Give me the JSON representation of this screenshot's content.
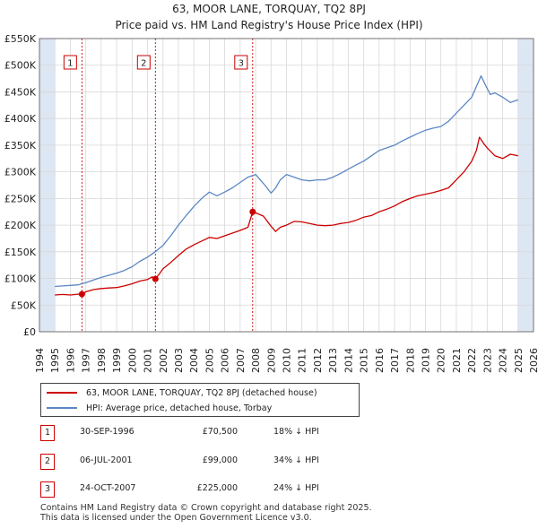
{
  "header": {
    "title": "63, MOOR LANE, TORQUAY, TQ2 8PJ",
    "subtitle": "Price paid vs. HM Land Registry's House Price Index (HPI)"
  },
  "colors": {
    "property": "#cc0000",
    "hpi": "#5b87c3",
    "shade": "#dde6f3",
    "grid": "#d8d8d8",
    "marker_line": "#cc0000"
  },
  "chart_data": {
    "type": "line",
    "title": "63, MOOR LANE, TORQUAY, TQ2 8PJ",
    "xlabel": "",
    "ylabel": "",
    "xlim": [
      1994,
      2026
    ],
    "ylim": [
      0,
      550000
    ],
    "x_ticks": [
      1994,
      1995,
      1996,
      1997,
      1998,
      1999,
      2000,
      2001,
      2002,
      2003,
      2004,
      2005,
      2006,
      2007,
      2008,
      2009,
      2010,
      2011,
      2012,
      2013,
      2014,
      2015,
      2016,
      2017,
      2018,
      2019,
      2020,
      2021,
      2022,
      2023,
      2024,
      2025,
      2026
    ],
    "y_ticks": [
      {
        "value": 0,
        "label": "£0"
      },
      {
        "value": 50000,
        "label": "£50K"
      },
      {
        "value": 100000,
        "label": "£100K"
      },
      {
        "value": 150000,
        "label": "£150K"
      },
      {
        "value": 200000,
        "label": "£200K"
      },
      {
        "value": 250000,
        "label": "£250K"
      },
      {
        "value": 300000,
        "label": "£300K"
      },
      {
        "value": 350000,
        "label": "£350K"
      },
      {
        "value": 400000,
        "label": "£400K"
      },
      {
        "value": 450000,
        "label": "£450K"
      },
      {
        "value": 500000,
        "label": "£500K"
      },
      {
        "value": 550000,
        "label": "£550K"
      }
    ],
    "shaded_ranges": [
      [
        1994,
        1995.0
      ],
      [
        2025.0,
        2026
      ]
    ],
    "series": [
      {
        "name": "63, MOOR LANE, TORQUAY, TQ2 8PJ (detached house)",
        "color": "#cc0000",
        "x": [
          1995.0,
          1995.5,
          1996.0,
          1996.5,
          1996.75,
          1997.0,
          1997.5,
          1998.0,
          1998.5,
          1999.0,
          1999.5,
          2000.0,
          2000.5,
          2001.0,
          2001.3,
          2001.51,
          2001.8,
          2002.0,
          2002.5,
          2003.0,
          2003.5,
          2004.0,
          2004.5,
          2005.0,
          2005.5,
          2006.0,
          2006.5,
          2007.0,
          2007.5,
          2007.81,
          2008.0,
          2008.5,
          2009.0,
          2009.3,
          2009.6,
          2010.0,
          2010.5,
          2011.0,
          2011.5,
          2012.0,
          2012.5,
          2013.0,
          2013.5,
          2014.0,
          2014.5,
          2015.0,
          2015.5,
          2016.0,
          2016.5,
          2017.0,
          2017.5,
          2018.0,
          2018.5,
          2019.0,
          2019.5,
          2020.0,
          2020.5,
          2021.0,
          2021.5,
          2022.0,
          2022.3,
          2022.5,
          2022.8,
          2023.0,
          2023.5,
          2024.0,
          2024.5,
          2025.0
        ],
        "y": [
          69000,
          70000,
          69000,
          70500,
          70500,
          75000,
          79000,
          81000,
          82000,
          83000,
          86000,
          90000,
          95000,
          98000,
          103000,
          99000,
          110000,
          118000,
          130000,
          143000,
          155000,
          163000,
          170000,
          177000,
          175000,
          180000,
          185000,
          190000,
          196000,
          225000,
          223000,
          217000,
          198000,
          188000,
          196000,
          200000,
          207000,
          206000,
          203000,
          200000,
          199000,
          200000,
          203000,
          205000,
          209000,
          215000,
          218000,
          225000,
          230000,
          236000,
          244000,
          250000,
          255000,
          258000,
          261000,
          265000,
          270000,
          285000,
          300000,
          320000,
          340000,
          365000,
          352000,
          345000,
          330000,
          325000,
          333000,
          330000
        ]
      },
      {
        "name": "HPI: Average price, detached house, Torbay",
        "color": "#5b87c3",
        "x": [
          1995.0,
          1995.5,
          1996.0,
          1996.5,
          1997.0,
          1997.5,
          1998.0,
          1998.5,
          1999.0,
          1999.5,
          2000.0,
          2000.5,
          2001.0,
          2001.5,
          2002.0,
          2002.5,
          2003.0,
          2003.5,
          2004.0,
          2004.5,
          2005.0,
          2005.5,
          2006.0,
          2006.5,
          2007.0,
          2007.5,
          2008.0,
          2008.3,
          2008.6,
          2009.0,
          2009.3,
          2009.6,
          2010.0,
          2010.5,
          2011.0,
          2011.5,
          2012.0,
          2012.5,
          2013.0,
          2013.5,
          2014.0,
          2014.5,
          2015.0,
          2015.5,
          2016.0,
          2016.5,
          2017.0,
          2017.5,
          2018.0,
          2018.5,
          2019.0,
          2019.5,
          2020.0,
          2020.5,
          2021.0,
          2021.5,
          2022.0,
          2022.3,
          2022.6,
          2022.9,
          2023.2,
          2023.5,
          2024.0,
          2024.5,
          2025.0
        ],
        "y": [
          85000,
          86000,
          87000,
          88000,
          92000,
          97000,
          102000,
          106000,
          110000,
          115000,
          122000,
          132000,
          140000,
          150000,
          162000,
          180000,
          200000,
          218000,
          235000,
          250000,
          262000,
          255000,
          262000,
          270000,
          280000,
          290000,
          295000,
          285000,
          275000,
          260000,
          270000,
          285000,
          295000,
          290000,
          285000,
          283000,
          285000,
          285000,
          290000,
          297000,
          305000,
          313000,
          320000,
          330000,
          340000,
          345000,
          350000,
          358000,
          365000,
          372000,
          378000,
          382000,
          385000,
          395000,
          410000,
          425000,
          440000,
          460000,
          480000,
          462000,
          445000,
          448000,
          440000,
          430000,
          435000
        ]
      }
    ],
    "transactions": [
      {
        "label": "1",
        "x": 1996.75,
        "y": 70500
      },
      {
        "label": "2",
        "x": 2001.51,
        "y": 99000
      },
      {
        "label": "3",
        "x": 2007.81,
        "y": 225000
      }
    ]
  },
  "legend": {
    "property_label": "63, MOOR LANE, TORQUAY, TQ2 8PJ (detached house)",
    "hpi_label": "HPI: Average price, detached house, Torbay"
  },
  "transactions_table": [
    {
      "num": "1",
      "date": "30-SEP-1996",
      "price": "£70,500",
      "hpi": "18% ↓ HPI"
    },
    {
      "num": "2",
      "date": "06-JUL-2001",
      "price": "£99,000",
      "hpi": "34% ↓ HPI"
    },
    {
      "num": "3",
      "date": "24-OCT-2007",
      "price": "£225,000",
      "hpi": "24% ↓ HPI"
    }
  ],
  "footer": {
    "line1": "Contains HM Land Registry data © Crown copyright and database right 2025.",
    "line2": "This data is licensed under the Open Government Licence v3.0."
  }
}
